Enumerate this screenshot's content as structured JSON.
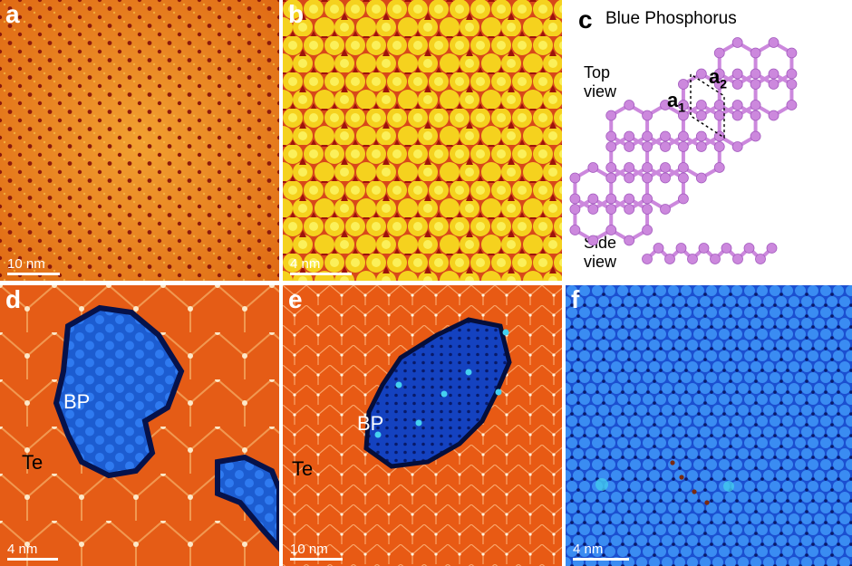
{
  "panels": {
    "a": {
      "letter": "a",
      "scale_label": "10 nm"
    },
    "b": {
      "letter": "b",
      "scale_label": "4 nm"
    },
    "c": {
      "letter": "c",
      "title": "Blue Phosphorus",
      "top_view_line1": "Top",
      "top_view_line2": "view",
      "side_view_line1": "Side",
      "side_view_line2": "view",
      "a1": "a",
      "a1_sub": "1",
      "a2": "a",
      "a2_sub": "2"
    },
    "d": {
      "letter": "d",
      "scale_label": "4 nm",
      "label_bp": "BP",
      "label_te": "Te"
    },
    "e": {
      "letter": "e",
      "scale_label": "10 nm",
      "label_bp": "BP",
      "label_te": "Te"
    },
    "f": {
      "letter": "f",
      "scale_label": "4 nm"
    }
  },
  "colors": {
    "orange": "#e8701a",
    "yellow": "#f5e12a",
    "dark_red": "#a3160f",
    "blue": "#1f6fe0",
    "navy": "#0a1e8c",
    "cyan": "#3ec4e8",
    "violet": "#cc88dd"
  }
}
